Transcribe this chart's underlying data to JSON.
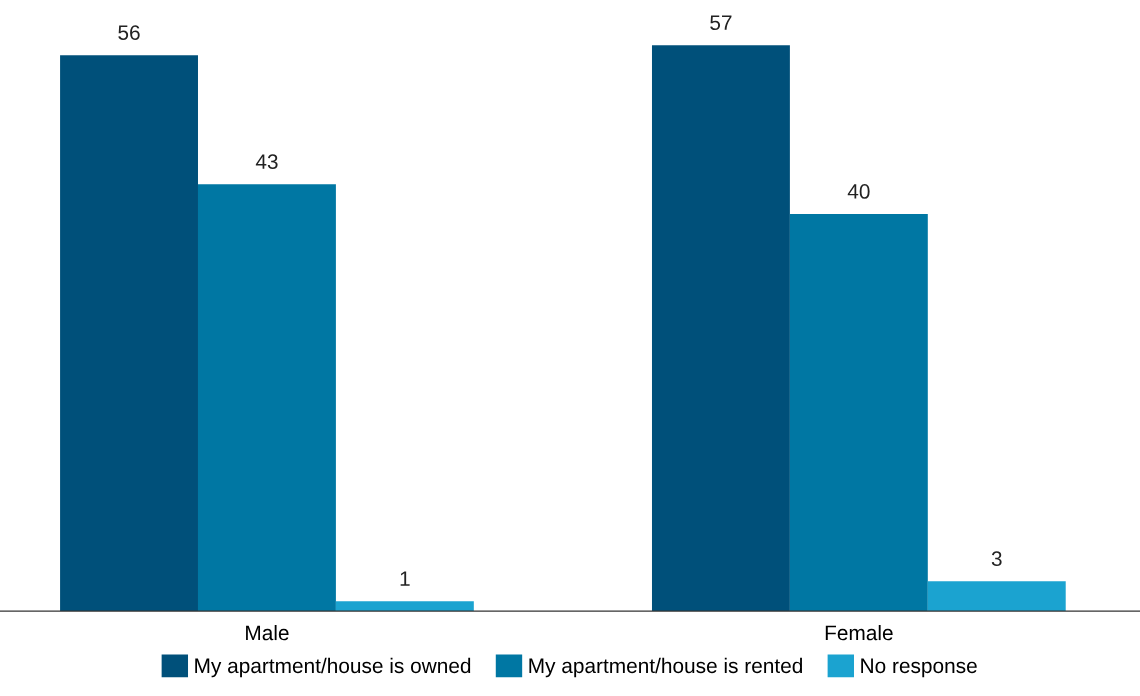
{
  "chart_data": {
    "type": "bar",
    "categories": [
      "Male",
      "Female"
    ],
    "series": [
      {
        "name": "My apartment/house is owned",
        "color": "#00507a",
        "values": [
          56,
          57
        ]
      },
      {
        "name": "My apartment/house is rented",
        "color": "#0077a3",
        "values": [
          43,
          40
        ]
      },
      {
        "name": "No response",
        "color": "#1ba3d0",
        "values": [
          1,
          3
        ]
      }
    ],
    "data_labels": true,
    "grid": false,
    "legend": "bottom",
    "tick_labels": "x"
  }
}
